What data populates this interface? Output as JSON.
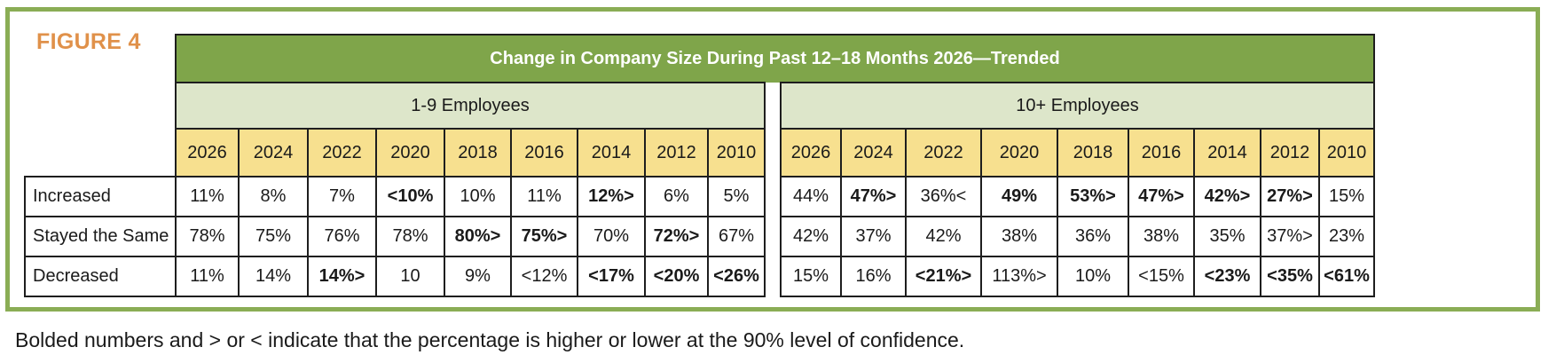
{
  "figure_label": "FIGURE 4",
  "title": "Change in Company Size During Past 12–18 Months 2026—Trended",
  "groups": [
    "1-9 Employees",
    "10+ Employees"
  ],
  "years": [
    "2026",
    "2024",
    "2022",
    "2020",
    "2018",
    "2016",
    "2014",
    "2012",
    "2010"
  ],
  "rows": [
    {
      "label": "Increased",
      "small": [
        {
          "v": "11%",
          "b": false
        },
        {
          "v": "8%",
          "b": false
        },
        {
          "v": "7%",
          "b": false
        },
        {
          "v": "<10%",
          "b": true
        },
        {
          "v": "10%",
          "b": false
        },
        {
          "v": "11%",
          "b": false
        },
        {
          "v": "12%>",
          "b": true
        },
        {
          "v": "6%",
          "b": false
        },
        {
          "v": "5%",
          "b": false
        }
      ],
      "large": [
        {
          "v": "44%",
          "b": false
        },
        {
          "v": "47%>",
          "b": true
        },
        {
          "v": "36%<",
          "b": false
        },
        {
          "v": "49%",
          "b": true
        },
        {
          "v": "53%>",
          "b": true
        },
        {
          "v": "47%>",
          "b": true
        },
        {
          "v": "42%>",
          "b": true
        },
        {
          "v": "27%>",
          "b": true
        },
        {
          "v": "15%",
          "b": false
        }
      ]
    },
    {
      "label": "Stayed the Same",
      "small": [
        {
          "v": "78%",
          "b": false
        },
        {
          "v": "75%",
          "b": false
        },
        {
          "v": "76%",
          "b": false
        },
        {
          "v": "78%",
          "b": false
        },
        {
          "v": "80%>",
          "b": true
        },
        {
          "v": "75%>",
          "b": true
        },
        {
          "v": "70%",
          "b": false
        },
        {
          "v": "72%>",
          "b": true
        },
        {
          "v": "67%",
          "b": false
        }
      ],
      "large": [
        {
          "v": "42%",
          "b": false
        },
        {
          "v": "37%",
          "b": false
        },
        {
          "v": "42%",
          "b": false
        },
        {
          "v": "38%",
          "b": false
        },
        {
          "v": "36%",
          "b": false
        },
        {
          "v": "38%",
          "b": false
        },
        {
          "v": "35%",
          "b": false
        },
        {
          "v": "37%>",
          "b": false
        },
        {
          "v": "23%",
          "b": false
        }
      ]
    },
    {
      "label": "Decreased",
      "small": [
        {
          "v": "11%",
          "b": false
        },
        {
          "v": "14%",
          "b": false
        },
        {
          "v": "14%>",
          "b": true
        },
        {
          "v": "10",
          "b": false
        },
        {
          "v": "9%",
          "b": false
        },
        {
          "v": "<12%",
          "b": false
        },
        {
          "v": "<17%",
          "b": true
        },
        {
          "v": "<20%",
          "b": true
        },
        {
          "v": "<26%",
          "b": true
        }
      ],
      "large": [
        {
          "v": "15%",
          "b": false
        },
        {
          "v": "16%",
          "b": false
        },
        {
          "v": "<21%>",
          "b": true
        },
        {
          "v": "113%>",
          "b": false
        },
        {
          "v": "10%",
          "b": false
        },
        {
          "v": "<15%",
          "b": false
        },
        {
          "v": "<23%",
          "b": true
        },
        {
          "v": "<35%",
          "b": true
        },
        {
          "v": "<61%",
          "b": true
        }
      ]
    }
  ],
  "footnote": "Bolded numbers and > or < indicate that the percentage is higher or lower at the 90% level of confidence.",
  "colors": {
    "frame": "#8aad55",
    "title_bg": "#7fa54a",
    "group_bg": "#dde6ca",
    "year_bg": "#f7e08f",
    "figure_label": "#e0914a"
  }
}
